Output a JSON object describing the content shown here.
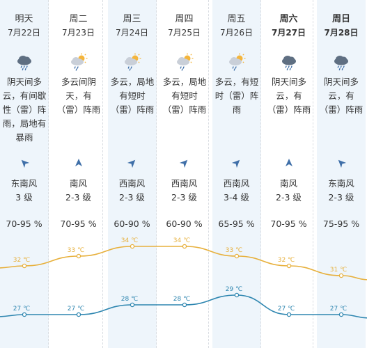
{
  "colors": {
    "high_line": "#e7b03c",
    "low_line": "#2e86b0",
    "column_shade": "#eef5fb",
    "icon_blue": "#3f6fa8",
    "sun": "#f4b53c",
    "cloud": "#c9cfd8",
    "cloud_dark": "#5f6f82"
  },
  "days": [
    {
      "day": "明天",
      "date": "7月22日",
      "icon": "cloud-rain-icon",
      "desc": "阴天间多云，有间歇性（雷）阵雨，局地有暴雨",
      "wind_dir": "东南风",
      "wind_level": "3 级",
      "wind_arrow_deg": 315,
      "humidity": "70-95 %",
      "high": "32 ℃",
      "low": "27 ℃",
      "bold": false
    },
    {
      "day": "周二",
      "date": "7月23日",
      "icon": "sun-cloud-rain-icon",
      "desc": "多云间阴天，有（雷）阵雨",
      "wind_dir": "南风",
      "wind_level": "2-3 级",
      "wind_arrow_deg": 0,
      "humidity": "70-95 %",
      "high": "33 ℃",
      "low": "27 ℃",
      "bold": false
    },
    {
      "day": "周三",
      "date": "7月24日",
      "icon": "sun-cloud-rain-icon",
      "desc": "多云，局地有短时（雷）阵雨",
      "wind_dir": "西南风",
      "wind_level": "2-3 级",
      "wind_arrow_deg": 45,
      "humidity": "60-90 %",
      "high": "34 ℃",
      "low": "28 ℃",
      "bold": false
    },
    {
      "day": "周四",
      "date": "7月25日",
      "icon": "sun-cloud-rain-icon",
      "desc": "多云，局地有短时（雷）阵雨",
      "wind_dir": "西南风",
      "wind_level": "2-3 级",
      "wind_arrow_deg": 45,
      "humidity": "60-90 %",
      "high": "34 ℃",
      "low": "28 ℃",
      "bold": false
    },
    {
      "day": "周五",
      "date": "7月26日",
      "icon": "sun-cloud-rain-icon",
      "desc": "多云，有短时（雷）阵雨",
      "wind_dir": "西南风",
      "wind_level": "3-4 级",
      "wind_arrow_deg": 45,
      "humidity": "65-95 %",
      "high": "33 ℃",
      "low": "29 ℃",
      "bold": false
    },
    {
      "day": "周六",
      "date": "7月27日",
      "icon": "cloud-rain-icon",
      "desc": "阴天间多云，有（雷）阵雨",
      "wind_dir": "南风",
      "wind_level": "2-3 级",
      "wind_arrow_deg": 0,
      "humidity": "70-95 %",
      "high": "32 ℃",
      "low": "27 ℃",
      "bold": true
    },
    {
      "day": "周日",
      "date": "7月28日",
      "icon": "cloud-rain-icon",
      "desc": "阴天间多云，有（雷）阵雨",
      "wind_dir": "东南风",
      "wind_level": "2-3 级",
      "wind_arrow_deg": 315,
      "humidity": "75-95 %",
      "high": "31 ℃",
      "low": "27 ℃",
      "bold": true
    }
  ],
  "chart_data": {
    "type": "line",
    "categories": [
      "7月22日",
      "7月23日",
      "7月24日",
      "7月25日",
      "7月26日",
      "7月27日",
      "7月28日"
    ],
    "series": [
      {
        "values": [
          32,
          33,
          34,
          34,
          33,
          32,
          31
        ]
      },
      {
        "values": [
          27,
          27,
          28,
          28,
          29,
          27,
          27
        ]
      }
    ],
    "ylim": [
      26,
      35
    ],
    "grid": false
  }
}
